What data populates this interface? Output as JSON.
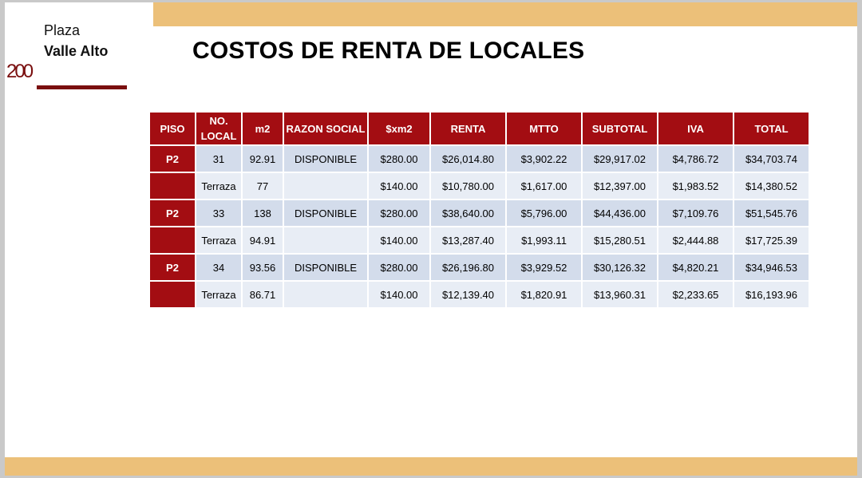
{
  "brand": {
    "line1": "Plaza",
    "line2": "Valle Alto",
    "mark": "200",
    "color": "#7a0f0f"
  },
  "title": "COSTOS DE RENTA DE LOCALES",
  "colors": {
    "header_fill": "#a30d12",
    "band": "#ecc079",
    "row_odd": "#d3dceb",
    "row_even": "#e8edf5"
  },
  "table": {
    "headers": {
      "piso": "PISO",
      "local_line1": "NO.",
      "local_line2": "LOCAL",
      "m2": "m2",
      "razon": "RAZON SOCIAL",
      "xm2": "$xm2",
      "renta": "RENTA",
      "mtto": "MTTO",
      "subtotal": "SUBTOTAL",
      "iva": "IVA",
      "total": "TOTAL"
    },
    "rows": [
      {
        "piso": "P2",
        "local": "31",
        "m2": "92.91",
        "razon": "DISPONIBLE",
        "xm2": "$280.00",
        "renta": "$26,014.80",
        "mtto": "$3,902.22",
        "subtotal": "$29,917.02",
        "iva": "$4,786.72",
        "total": "$34,703.74"
      },
      {
        "piso": "",
        "local": "Terraza",
        "m2": "77",
        "razon": "",
        "xm2": "$140.00",
        "renta": "$10,780.00",
        "mtto": "$1,617.00",
        "subtotal": "$12,397.00",
        "iva": "$1,983.52",
        "total": "$14,380.52"
      },
      {
        "piso": "P2",
        "local": "33",
        "m2": "138",
        "razon": "DISPONIBLE",
        "xm2": "$280.00",
        "renta": "$38,640.00",
        "mtto": "$5,796.00",
        "subtotal": "$44,436.00",
        "iva": "$7,109.76",
        "total": "$51,545.76"
      },
      {
        "piso": "",
        "local": "Terraza",
        "m2": "94.91",
        "razon": "",
        "xm2": "$140.00",
        "renta": "$13,287.40",
        "mtto": "$1,993.11",
        "subtotal": "$15,280.51",
        "iva": "$2,444.88",
        "total": "$17,725.39"
      },
      {
        "piso": "P2",
        "local": "34",
        "m2": "93.56",
        "razon": "DISPONIBLE",
        "xm2": "$280.00",
        "renta": "$26,196.80",
        "mtto": "$3,929.52",
        "subtotal": "$30,126.32",
        "iva": "$4,820.21",
        "total": "$34,946.53"
      },
      {
        "piso": "",
        "local": "Terraza",
        "m2": "86.71",
        "razon": "",
        "xm2": "$140.00",
        "renta": "$12,139.40",
        "mtto": "$1,820.91",
        "subtotal": "$13,960.31",
        "iva": "$2,233.65",
        "total": "$16,193.96"
      }
    ]
  }
}
